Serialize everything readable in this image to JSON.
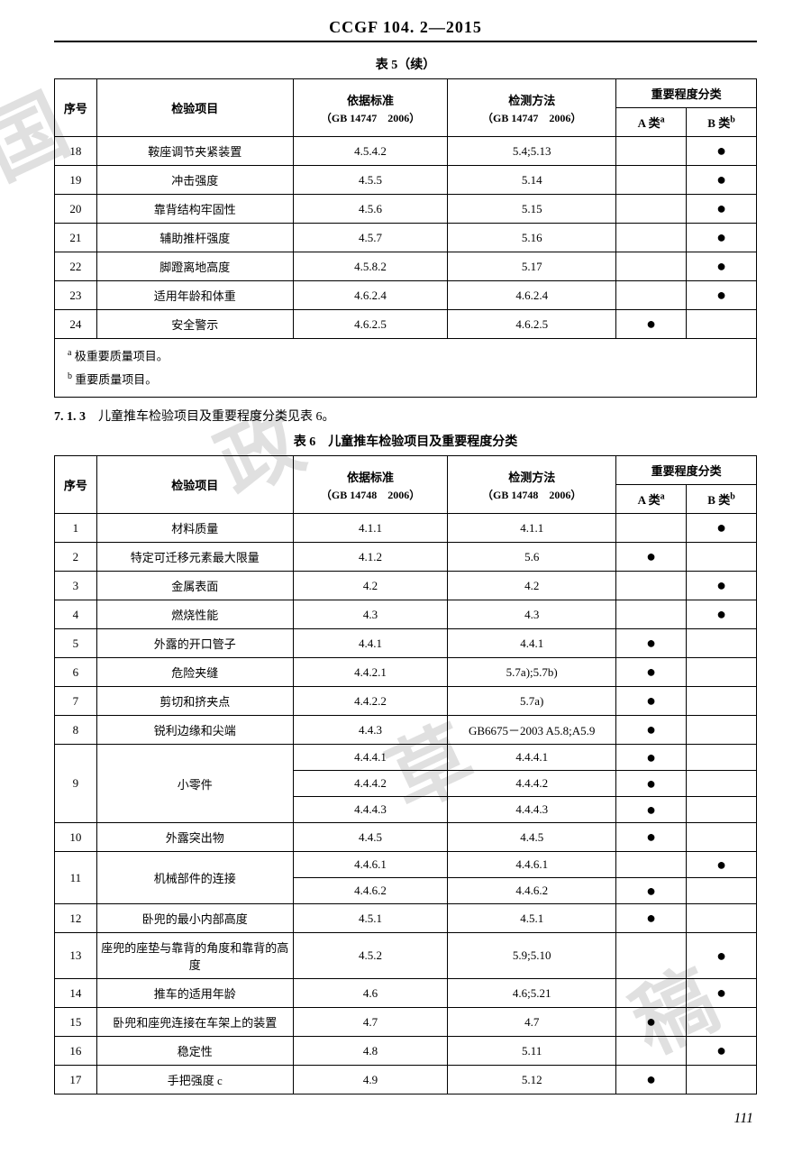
{
  "doc_code": "CCGF 104. 2—2015",
  "table5": {
    "caption": "表 5（续）",
    "header": {
      "seq": "序号",
      "item": "检验项目",
      "std": "依据标准",
      "std_sub": "（GB 14747　2006）",
      "method": "检测方法",
      "method_sub": "（GB 14747　2006）",
      "importance": "重要程度分类",
      "a": "A 类",
      "b": "B 类"
    },
    "rows": [
      {
        "seq": "18",
        "item": "鞍座调节夹紧装置",
        "std": "4.5.4.2",
        "method": "5.4;5.13",
        "a": "",
        "b": "●"
      },
      {
        "seq": "19",
        "item": "冲击强度",
        "std": "4.5.5",
        "method": "5.14",
        "a": "",
        "b": "●"
      },
      {
        "seq": "20",
        "item": "靠背结构牢固性",
        "std": "4.5.6",
        "method": "5.15",
        "a": "",
        "b": "●"
      },
      {
        "seq": "21",
        "item": "辅助推杆强度",
        "std": "4.5.7",
        "method": "5.16",
        "a": "",
        "b": "●"
      },
      {
        "seq": "22",
        "item": "脚蹬离地高度",
        "std": "4.5.8.2",
        "method": "5.17",
        "a": "",
        "b": "●"
      },
      {
        "seq": "23",
        "item": "适用年龄和体重",
        "std": "4.6.2.4",
        "method": "4.6.2.4",
        "a": "",
        "b": "●"
      },
      {
        "seq": "24",
        "item": "安全警示",
        "std": "4.6.2.5",
        "method": "4.6.2.5",
        "a": "●",
        "b": ""
      }
    ],
    "footnote_a": "极重要质量项目。",
    "footnote_b": "重要质量项目。"
  },
  "section_713": "7. 1. 3　儿童推车检验项目及重要程度分类见表 6。",
  "table6": {
    "caption": "表 6　儿童推车检验项目及重要程度分类",
    "header": {
      "seq": "序号",
      "item": "检验项目",
      "std": "依据标准",
      "std_sub": "（GB 14748　2006）",
      "method": "检测方法",
      "method_sub": "（GB 14748　2006）",
      "importance": "重要程度分类",
      "a": "A 类",
      "b": "B 类"
    }
  },
  "page_number": "111"
}
